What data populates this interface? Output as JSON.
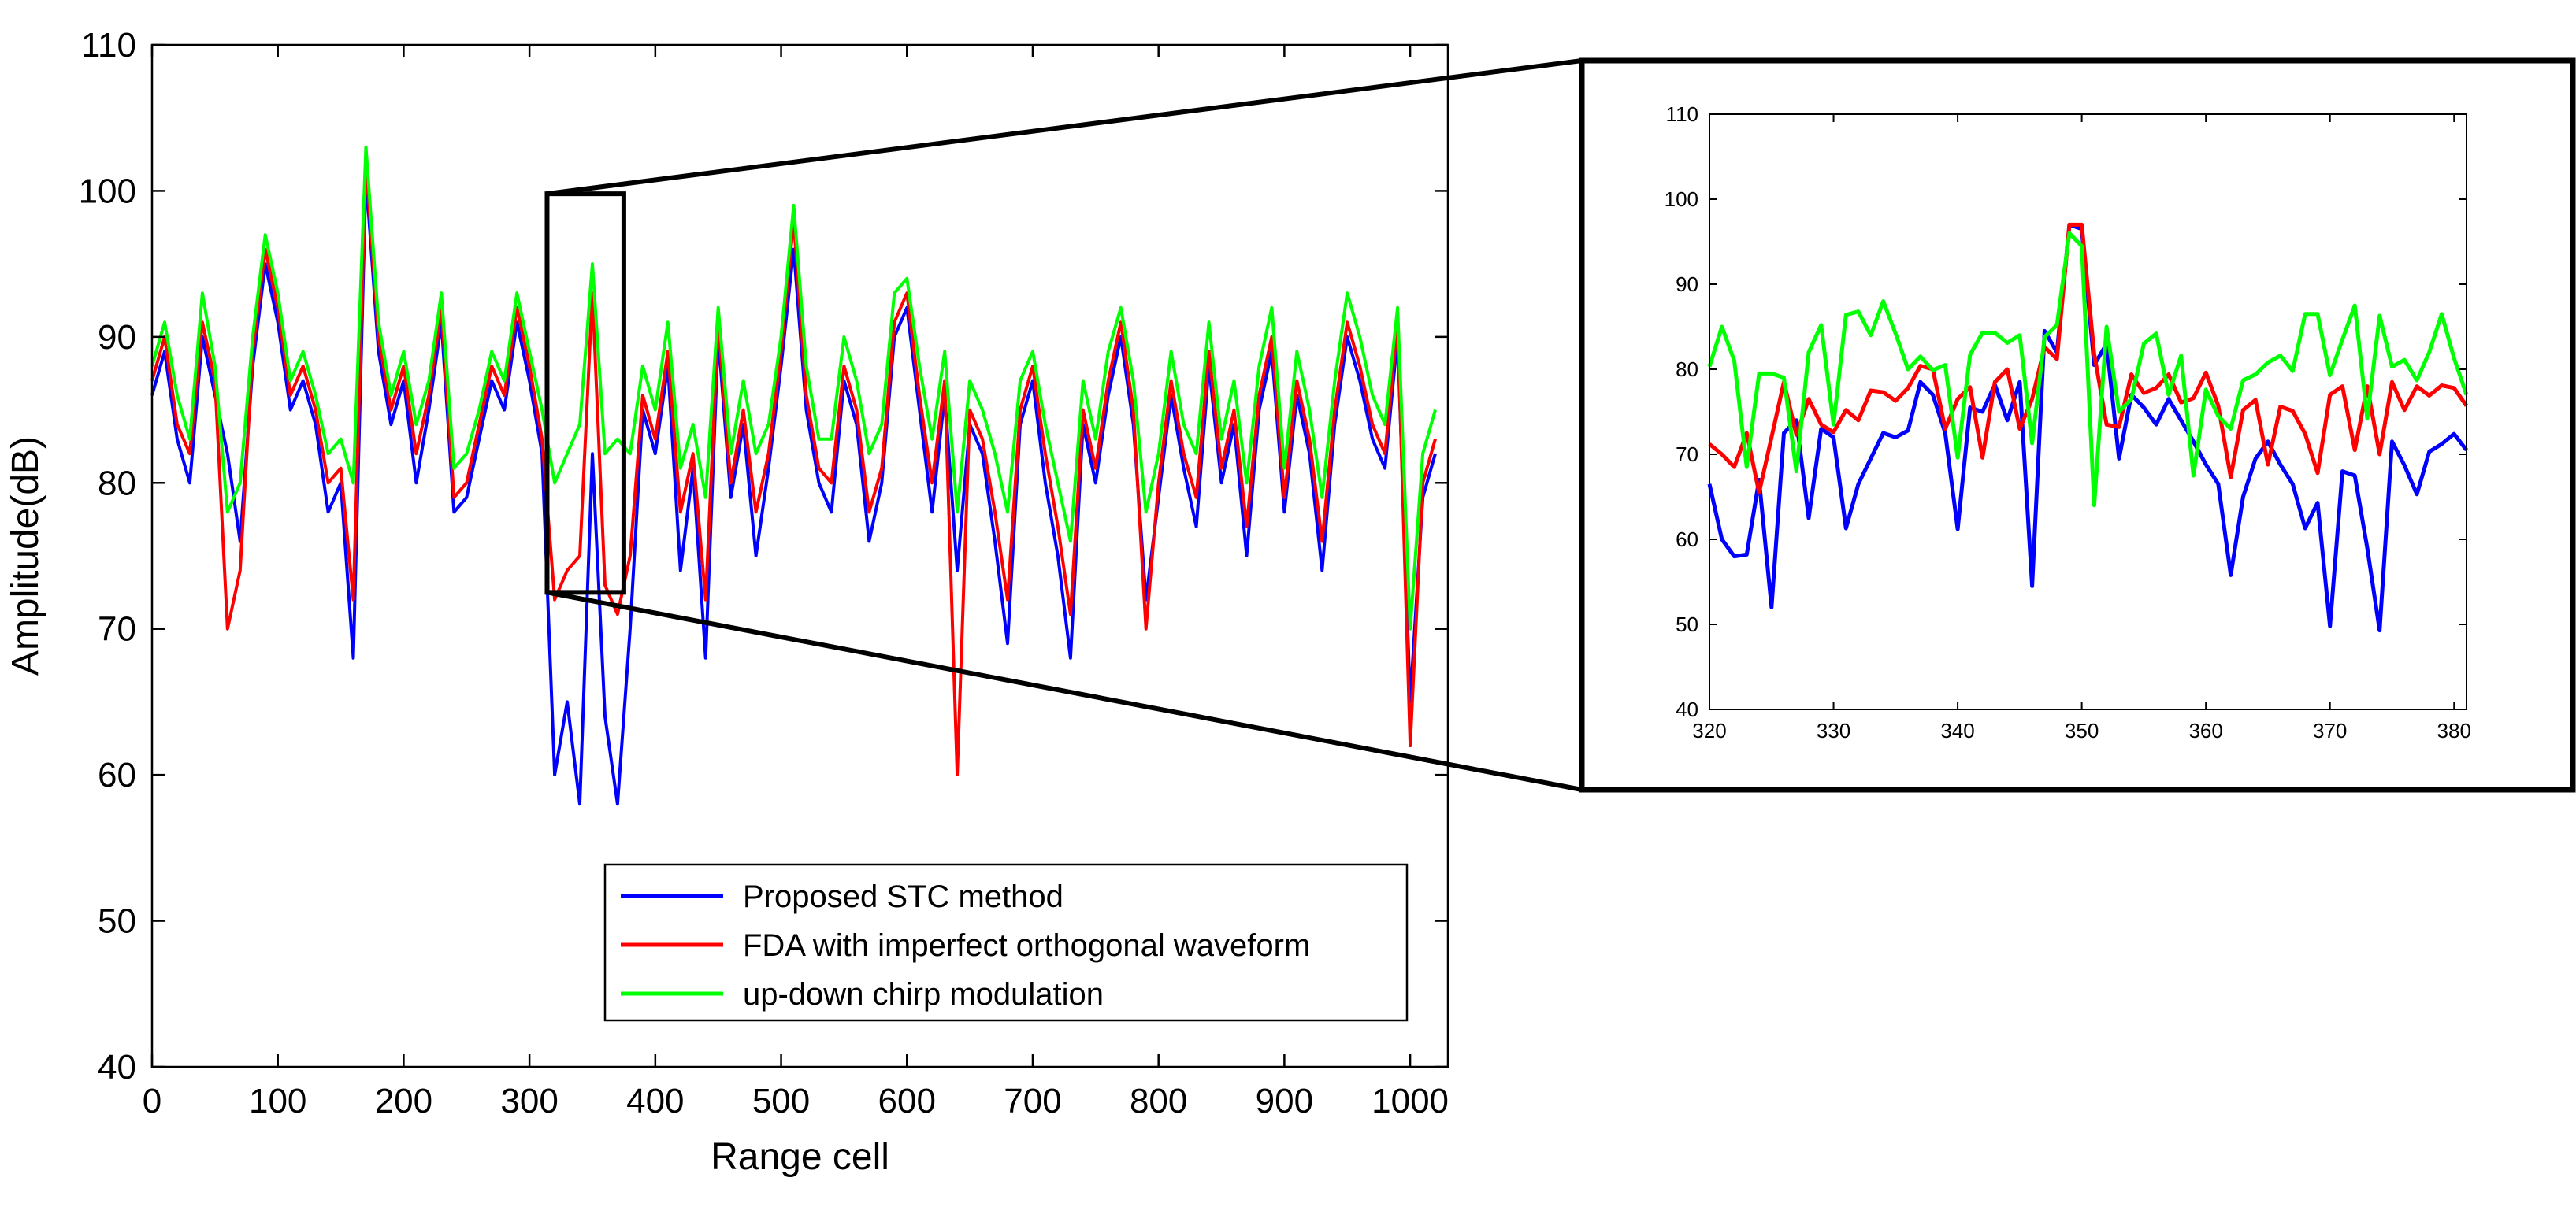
{
  "chart_data": [
    {
      "type": "line",
      "xlabel": "Range cell",
      "ylabel": "Amplitude(dB)",
      "xlim": [
        0,
        1030
      ],
      "ylim": [
        40,
        110
      ],
      "xticks": [
        "0",
        "100",
        "200",
        "300",
        "400",
        "500",
        "600",
        "700",
        "800",
        "900",
        "1000"
      ],
      "yticks": [
        "40",
        "50",
        "60",
        "70",
        "80",
        "90",
        "100",
        "110"
      ],
      "grid": false,
      "legend": {
        "placement": "bottom-center"
      },
      "zoom_box": {
        "x": [
          314,
          375
        ],
        "y": [
          72.5,
          99.8
        ]
      },
      "series": [
        {
          "name": "Proposed STC method",
          "color": "#0000ff",
          "x": [
            0,
            10,
            20,
            30,
            40,
            50,
            60,
            70,
            80,
            90,
            100,
            110,
            120,
            130,
            140,
            150,
            160,
            170,
            180,
            190,
            200,
            210,
            220,
            230,
            240,
            250,
            260,
            270,
            280,
            290,
            300,
            310,
            320,
            330,
            340,
            350,
            360,
            370,
            380,
            390,
            400,
            410,
            420,
            430,
            440,
            450,
            460,
            470,
            480,
            490,
            500,
            510,
            520,
            530,
            540,
            550,
            560,
            570,
            580,
            590,
            600,
            610,
            620,
            630,
            640,
            650,
            660,
            670,
            680,
            690,
            700,
            710,
            720,
            730,
            740,
            750,
            760,
            770,
            780,
            790,
            800,
            810,
            820,
            830,
            840,
            850,
            860,
            870,
            880,
            890,
            900,
            910,
            920,
            930,
            940,
            950,
            960,
            970,
            980,
            990,
            1000,
            1010,
            1020
          ],
          "values": [
            86,
            89,
            83,
            80,
            90,
            86,
            82,
            76,
            88,
            95,
            91,
            85,
            87,
            84,
            78,
            80,
            68,
            101,
            89,
            84,
            87,
            80,
            85,
            91,
            78,
            79,
            83,
            87,
            85,
            91,
            87,
            82,
            60,
            65,
            58,
            82,
            64,
            58,
            70,
            85,
            82,
            88,
            74,
            81,
            68,
            90,
            79,
            84,
            75,
            81,
            88,
            96,
            85,
            80,
            78,
            87,
            84,
            76,
            80,
            90,
            92,
            85,
            78,
            86,
            74,
            84,
            82,
            76,
            69,
            84,
            87,
            80,
            75,
            68,
            84,
            80,
            86,
            90,
            84,
            72,
            79,
            86,
            81,
            77,
            88,
            80,
            84,
            75,
            85,
            89,
            78,
            86,
            82,
            74,
            84,
            90,
            87,
            83,
            81,
            90,
            65,
            79,
            82
          ]
        },
        {
          "name": "FDA with imperfect orthogonal waveform",
          "color": "#ff0000",
          "x": [
            0,
            10,
            20,
            30,
            40,
            50,
            60,
            70,
            80,
            90,
            100,
            110,
            120,
            130,
            140,
            150,
            160,
            170,
            180,
            190,
            200,
            210,
            220,
            230,
            240,
            250,
            260,
            270,
            280,
            290,
            300,
            310,
            320,
            330,
            340,
            350,
            360,
            370,
            380,
            390,
            400,
            410,
            420,
            430,
            440,
            450,
            460,
            470,
            480,
            490,
            500,
            510,
            520,
            530,
            540,
            550,
            560,
            570,
            580,
            590,
            600,
            610,
            620,
            630,
            640,
            650,
            660,
            670,
            680,
            690,
            700,
            710,
            720,
            730,
            740,
            750,
            760,
            770,
            780,
            790,
            800,
            810,
            820,
            830,
            840,
            850,
            860,
            870,
            880,
            890,
            900,
            910,
            920,
            930,
            940,
            950,
            960,
            970,
            980,
            990,
            1000,
            1010,
            1020
          ],
          "values": [
            87,
            90,
            84,
            82,
            91,
            87,
            70,
            74,
            89,
            96,
            92,
            86,
            88,
            85,
            80,
            81,
            72,
            102,
            90,
            85,
            88,
            82,
            86,
            92,
            79,
            80,
            84,
            88,
            86,
            92,
            88,
            83,
            72,
            74,
            75,
            93,
            73,
            71,
            75,
            86,
            83,
            89,
            78,
            82,
            72,
            91,
            80,
            85,
            78,
            82,
            89,
            98,
            86,
            81,
            80,
            88,
            85,
            78,
            81,
            91,
            93,
            86,
            80,
            87,
            60,
            85,
            83,
            78,
            72,
            85,
            88,
            82,
            77,
            71,
            85,
            81,
            87,
            91,
            85,
            70,
            80,
            87,
            82,
            79,
            89,
            81,
            85,
            77,
            86,
            90,
            79,
            87,
            83,
            76,
            85,
            91,
            88,
            84,
            82,
            91,
            62,
            80,
            83
          ]
        },
        {
          "name": "up-down chirp modulation",
          "color": "#00ff00",
          "x": [
            0,
            10,
            20,
            30,
            40,
            50,
            60,
            70,
            80,
            90,
            100,
            110,
            120,
            130,
            140,
            150,
            160,
            170,
            180,
            190,
            200,
            210,
            220,
            230,
            240,
            250,
            260,
            270,
            280,
            290,
            300,
            310,
            320,
            330,
            340,
            350,
            360,
            370,
            380,
            390,
            400,
            410,
            420,
            430,
            440,
            450,
            460,
            470,
            480,
            490,
            500,
            510,
            520,
            530,
            540,
            550,
            560,
            570,
            580,
            590,
            600,
            610,
            620,
            630,
            640,
            650,
            660,
            670,
            680,
            690,
            700,
            710,
            720,
            730,
            740,
            750,
            760,
            770,
            780,
            790,
            800,
            810,
            820,
            830,
            840,
            850,
            860,
            870,
            880,
            890,
            900,
            910,
            920,
            930,
            940,
            950,
            960,
            970,
            980,
            990,
            1000,
            1010,
            1020
          ],
          "values": [
            88,
            91,
            86,
            83,
            93,
            88,
            78,
            80,
            90,
            97,
            93,
            87,
            89,
            86,
            82,
            83,
            80,
            103,
            91,
            86,
            89,
            84,
            87,
            93,
            81,
            82,
            85,
            89,
            87,
            93,
            89,
            85,
            80,
            82,
            84,
            95,
            82,
            83,
            82,
            88,
            85,
            91,
            81,
            84,
            79,
            92,
            82,
            87,
            82,
            84,
            90,
            99,
            88,
            83,
            83,
            90,
            87,
            82,
            84,
            93,
            94,
            88,
            83,
            89,
            78,
            87,
            85,
            82,
            78,
            87,
            89,
            84,
            80,
            76,
            87,
            83,
            89,
            92,
            87,
            78,
            82,
            89,
            84,
            82,
            91,
            83,
            87,
            80,
            88,
            92,
            81,
            89,
            85,
            79,
            87,
            93,
            90,
            86,
            84,
            92,
            70,
            82,
            85
          ]
        }
      ]
    },
    {
      "type": "line",
      "xlim": [
        320,
        381
      ],
      "ylim": [
        40,
        110
      ],
      "xticks": [
        "320",
        "330",
        "340",
        "350",
        "360",
        "370",
        "380"
      ],
      "yticks": [
        "40",
        "50",
        "60",
        "70",
        "80",
        "90",
        "100",
        "110"
      ],
      "grid": false,
      "series": [
        {
          "name": "Proposed STC method",
          "color": "#0000ff",
          "x": [
            320,
            321,
            322,
            323,
            324,
            325,
            326,
            327,
            328,
            329,
            330,
            331,
            332,
            333,
            334,
            335,
            336,
            337,
            338,
            339,
            340,
            341,
            342,
            343,
            344,
            345,
            346,
            347,
            348,
            349,
            350,
            351,
            352,
            353,
            354,
            355,
            356,
            357,
            358,
            359,
            360,
            361,
            362,
            363,
            364,
            365,
            366,
            367,
            368,
            369,
            370,
            371,
            372,
            373,
            374,
            375,
            376,
            377,
            378,
            379,
            380,
            381
          ],
          "values": [
            66.5,
            60,
            58,
            58.2,
            67,
            52,
            72.5,
            74,
            62.5,
            73,
            72,
            61.3,
            66.5,
            69.5,
            72.5,
            72,
            72.8,
            78.5,
            77,
            72.5,
            61.2,
            75.5,
            75,
            78.2,
            74,
            78.5,
            54.5,
            84.5,
            82,
            97,
            96.5,
            80.5,
            83,
            69.5,
            77,
            75.5,
            73.5,
            76.5,
            74,
            71.5,
            68.8,
            66.5,
            55.8,
            65,
            69.5,
            71.5,
            68.8,
            66.5,
            61.3,
            64.3,
            49.8,
            68,
            67.5,
            59,
            49.3,
            71.5,
            68.7,
            65.3,
            70.3,
            71.2,
            72.4,
            70.5
          ]
        },
        {
          "name": "FDA with imperfect orthogonal waveform",
          "color": "#ff0000",
          "x": [
            320,
            321,
            322,
            323,
            324,
            325,
            326,
            327,
            328,
            329,
            330,
            331,
            332,
            333,
            334,
            335,
            336,
            337,
            338,
            339,
            340,
            341,
            342,
            343,
            344,
            345,
            346,
            347,
            348,
            349,
            350,
            351,
            352,
            353,
            354,
            355,
            356,
            357,
            358,
            359,
            360,
            361,
            362,
            363,
            364,
            365,
            366,
            367,
            368,
            369,
            370,
            371,
            372,
            373,
            374,
            375,
            376,
            377,
            378,
            379,
            380,
            381
          ],
          "values": [
            71.2,
            70,
            68.5,
            72.5,
            65.5,
            72,
            78.5,
            72.3,
            76.5,
            73.5,
            72.6,
            75.2,
            74,
            77.5,
            77.3,
            76.3,
            77.8,
            80.4,
            80,
            73,
            76.5,
            77.9,
            69.6,
            78.5,
            80,
            73,
            76.5,
            82.6,
            81.2,
            97,
            97,
            81.8,
            73.5,
            73.2,
            79.4,
            77.2,
            77.8,
            79.4,
            76.1,
            76.6,
            79.6,
            75.7,
            67.3,
            75.2,
            76.4,
            68.8,
            75.6,
            75.1,
            72.4,
            67.8,
            77,
            78,
            70.5,
            78,
            70,
            78.5,
            75.2,
            78,
            76.9,
            78.1,
            77.8,
            75.7
          ]
        },
        {
          "name": "up-down chirp modulation",
          "color": "#00ff00",
          "x": [
            320,
            321,
            322,
            323,
            324,
            325,
            326,
            327,
            328,
            329,
            330,
            331,
            332,
            333,
            334,
            335,
            336,
            337,
            338,
            339,
            340,
            341,
            342,
            343,
            344,
            345,
            346,
            347,
            348,
            349,
            350,
            351,
            352,
            353,
            354,
            355,
            356,
            357,
            358,
            359,
            360,
            361,
            362,
            363,
            364,
            365,
            366,
            367,
            368,
            369,
            370,
            371,
            372,
            373,
            374,
            375,
            376,
            377,
            378,
            379,
            380,
            381
          ],
          "values": [
            80.3,
            85,
            81,
            68.5,
            79.5,
            79.5,
            79,
            68,
            82,
            85.2,
            73.5,
            86.4,
            86.8,
            84,
            88,
            84.2,
            80,
            81.5,
            79.9,
            80.5,
            69.6,
            81.7,
            84.3,
            84.3,
            83.1,
            84,
            71.3,
            83.8,
            85.2,
            96,
            94.5,
            64,
            85,
            75,
            76.5,
            83,
            84.2,
            77,
            81.6,
            67.5,
            77.6,
            74.5,
            73,
            78.7,
            79.4,
            80.8,
            81.6,
            79.8,
            86.5,
            86.5,
            79.3,
            83.5,
            87.5,
            74.2,
            86.3,
            80.3,
            81.1,
            78.7,
            82,
            86.5,
            81.3,
            77
          ]
        }
      ]
    }
  ]
}
